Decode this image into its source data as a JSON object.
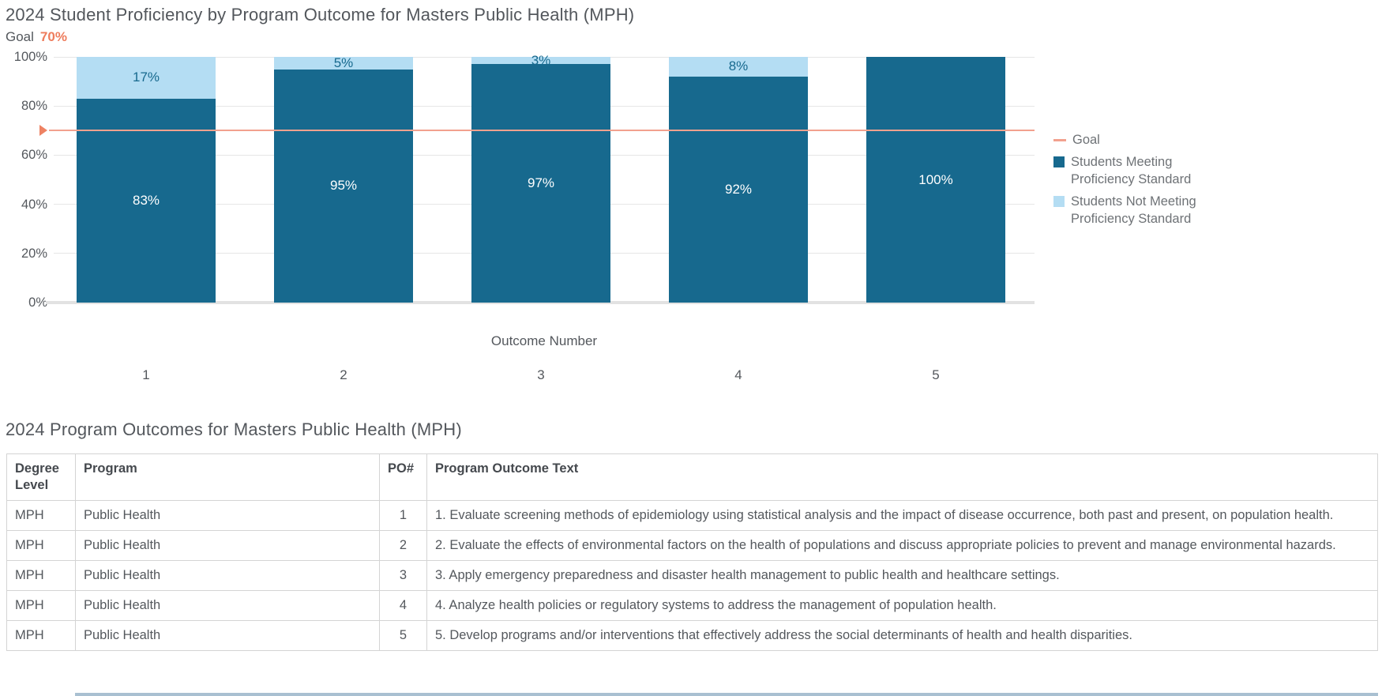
{
  "chart": {
    "title": "2024 Student Proficiency by Program Outcome for Masters Public Health (MPH)",
    "goal_label": "Goal",
    "goal_value": "70%",
    "xlabel": "Outcome Number"
  },
  "chart_data": {
    "type": "bar",
    "stacked": true,
    "title": "2024 Student Proficiency by Program Outcome for Masters Public Health (MPH)",
    "categories": [
      "1",
      "2",
      "3",
      "4",
      "5"
    ],
    "series": [
      {
        "name": "Students Meeting Proficiency Standard",
        "color": "#17698e",
        "label_color": "#ffffff",
        "values": [
          83,
          95,
          97,
          92,
          100
        ]
      },
      {
        "name": "Students Not Meeting Proficiency Standard",
        "color": "#b4ddf3",
        "label_color": "#17698e",
        "values": [
          17,
          5,
          3,
          8,
          0
        ]
      }
    ],
    "data_labels": [
      {
        "meeting": "83%",
        "not_meeting": "17%"
      },
      {
        "meeting": "95%",
        "not_meeting": "5%"
      },
      {
        "meeting": "97%",
        "not_meeting": "3%"
      },
      {
        "meeting": "92%",
        "not_meeting": "8%"
      },
      {
        "meeting": "100%",
        "not_meeting": ""
      }
    ],
    "goal": {
      "label": "Goal",
      "value": 70,
      "display": "70%",
      "line_color": "#f2a18e",
      "marker_color": "#ee8263"
    },
    "xlabel": "Outcome Number",
    "ylabel": "",
    "ylim": [
      0,
      100
    ],
    "yticks": [
      "0%",
      "20%",
      "40%",
      "60%",
      "80%",
      "100%"
    ],
    "grid": true,
    "legend_position": "right",
    "legend": [
      "Goal",
      "Students Meeting Proficiency Standard",
      "Students Not Meeting Proficiency Standard"
    ]
  },
  "table": {
    "title": "2024 Program Outcomes for Masters Public Health (MPH)",
    "columns": [
      "Degree Level",
      "Program",
      "PO#",
      "Program Outcome Text"
    ],
    "rows": [
      {
        "degree": "MPH",
        "program": "Public Health",
        "po": "1",
        "text": "1. Evaluate screening methods of epidemiology using statistical analysis and the impact of disease occurrence, both past and present, on population health."
      },
      {
        "degree": "MPH",
        "program": "Public Health",
        "po": "2",
        "text": "2. Evaluate the effects of environmental factors on the health of populations and discuss appropriate policies to prevent and manage environmental hazards."
      },
      {
        "degree": "MPH",
        "program": "Public Health",
        "po": "3",
        "text": "3. Apply emergency preparedness and disaster health management to public health and healthcare settings."
      },
      {
        "degree": "MPH",
        "program": "Public Health",
        "po": "4",
        "text": "4. Analyze health policies or regulatory systems to address the management of population health."
      },
      {
        "degree": "MPH",
        "program": "Public Health",
        "po": "5",
        "text": "5. Develop programs and/or interventions that effectively address the social determinants of health and health disparities."
      }
    ]
  }
}
